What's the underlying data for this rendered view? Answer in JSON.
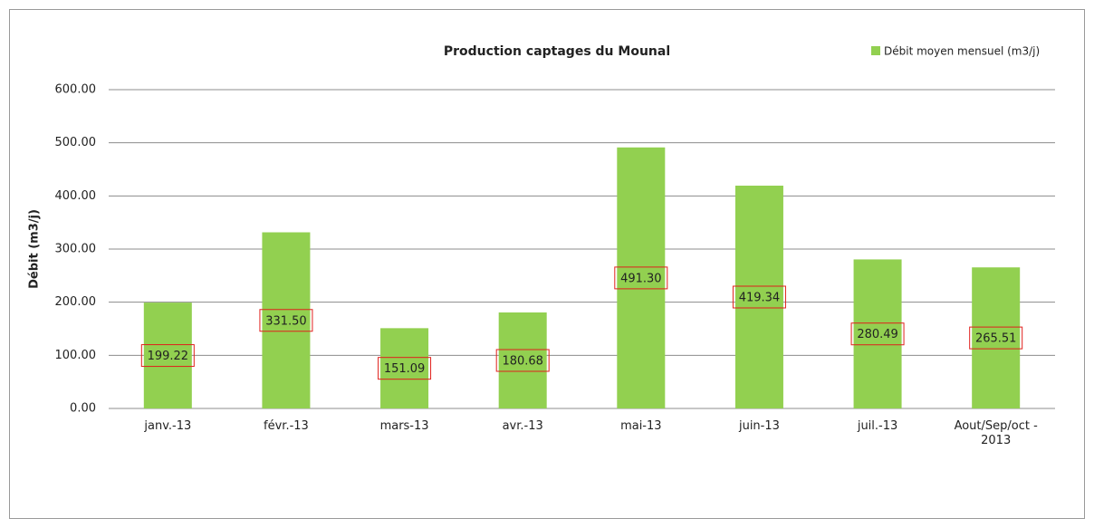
{
  "chart_data": {
    "type": "bar",
    "title": "Production  captages du Mounal",
    "y_label": "Débit (m3/j)",
    "categories": [
      "janv.-13",
      "févr.-13",
      "mars-13",
      "avr.-13",
      "mai-13",
      "juin-13",
      "juil.-13",
      "Aout/Sep/oct - 2013"
    ],
    "series": [
      {
        "name": "Débit moyen mensuel (m3/j)",
        "color": "#92d050",
        "values": [
          199.22,
          331.5,
          151.09,
          180.68,
          491.3,
          419.34,
          280.49,
          265.51
        ],
        "value_labels": [
          "199.22",
          "331.50",
          "151.09",
          "180.68",
          "491.30",
          "419.34",
          "280.49",
          "265.51"
        ]
      }
    ],
    "ylim": [
      0,
      600
    ],
    "yticks": [
      {
        "value": 0,
        "label": "0.00"
      },
      {
        "value": 100,
        "label": "100.00"
      },
      {
        "value": 200,
        "label": "200.00"
      },
      {
        "value": 300,
        "label": "300.00"
      },
      {
        "value": 400,
        "label": "400.00"
      },
      {
        "value": 500,
        "label": "500.00"
      },
      {
        "value": 600,
        "label": "600.00"
      }
    ],
    "grid": true,
    "legend": "top-right"
  }
}
